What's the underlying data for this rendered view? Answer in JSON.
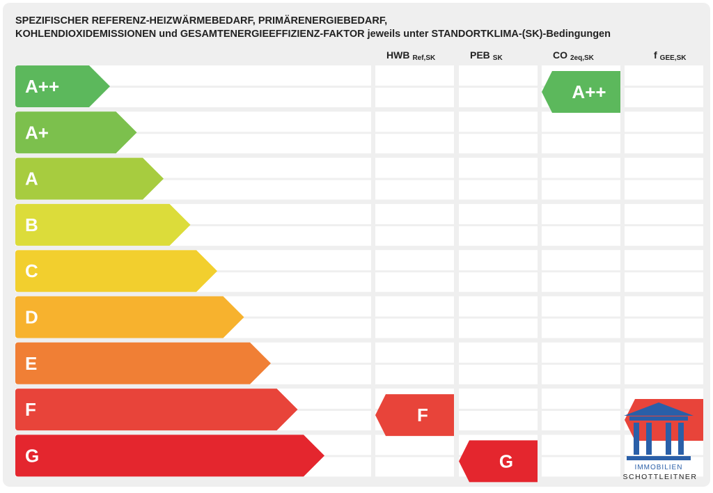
{
  "title": [
    "SPEZIFISCHER REFERENZ-HEIZWÄRMEBEDARF, PRIMÄRENERGIEBEDARF,",
    "KOHLENDIOXIDEMISSIONEN und GESAMTENERGIEEFFIZIENZ-FAKTOR jeweils unter STANDORTKLIMA-(SK)-Bedingungen"
  ],
  "classes": [
    {
      "label": "A++",
      "color": "#5cb85c"
    },
    {
      "label": "A+",
      "color": "#7cc04d"
    },
    {
      "label": "A",
      "color": "#a7cc3f"
    },
    {
      "label": "B",
      "color": "#dcdc3a"
    },
    {
      "label": "C",
      "color": "#f2cf2e"
    },
    {
      "label": "D",
      "color": "#f7b22e"
    },
    {
      "label": "E",
      "color": "#f07f35"
    },
    {
      "label": "F",
      "color": "#e8443a"
    },
    {
      "label": "G",
      "color": "#e4262e"
    }
  ],
  "columns": [
    {
      "label": "HWB",
      "sub": "Ref,SK",
      "rating": "F"
    },
    {
      "label": "PEB",
      "sub": "SK",
      "rating": "G"
    },
    {
      "label": "CO",
      "sub": "2eq,SK",
      "rating": "A++"
    },
    {
      "label": "f",
      "sub": "GEE,SK"
    }
  ],
  "logo": [
    "IMMOBILIEN",
    "SCHOTTLEITNER"
  ]
}
